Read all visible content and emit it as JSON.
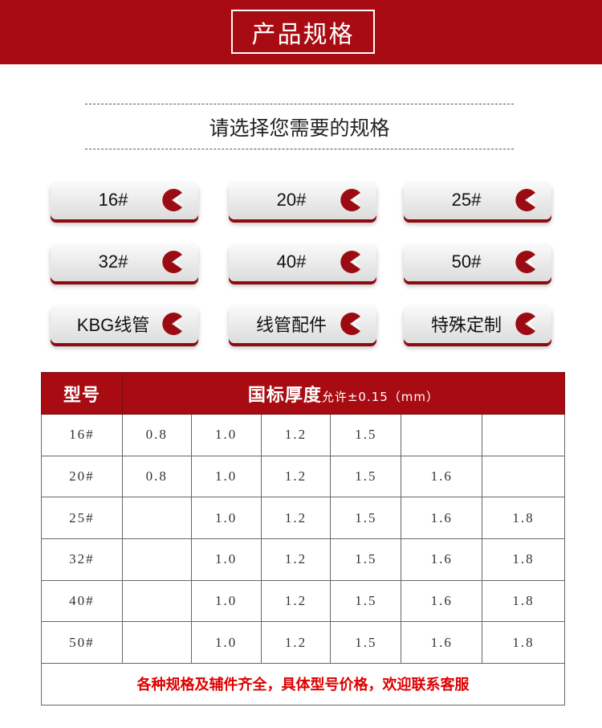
{
  "banner": {
    "title": "产品规格"
  },
  "subtitle": "请选择您需要的规格",
  "buttons": [
    {
      "label": "16#"
    },
    {
      "label": "20#"
    },
    {
      "label": "25#"
    },
    {
      "label": "32#"
    },
    {
      "label": "40#"
    },
    {
      "label": "50#"
    },
    {
      "label": "KBG线管"
    },
    {
      "label": "线管配件"
    },
    {
      "label": "特殊定制"
    }
  ],
  "button_icon": "pie-chevron-icon",
  "colors": {
    "brand_red": "#a80c12",
    "footer_text": "#dd0000"
  },
  "table": {
    "header_model": "型号",
    "header_thickness": "国标厚度",
    "header_tolerance": "允许±0.15（mm）",
    "rows": [
      {
        "model": "16#",
        "values": [
          "0.8",
          "1.0",
          "1.2",
          "1.5",
          "",
          ""
        ]
      },
      {
        "model": "20#",
        "values": [
          "0.8",
          "1.0",
          "1.2",
          "1.5",
          "1.6",
          ""
        ]
      },
      {
        "model": "25#",
        "values": [
          "",
          "1.0",
          "1.2",
          "1.5",
          "1.6",
          "1.8"
        ]
      },
      {
        "model": "32#",
        "values": [
          "",
          "1.0",
          "1.2",
          "1.5",
          "1.6",
          "1.8"
        ]
      },
      {
        "model": "40#",
        "values": [
          "",
          "1.0",
          "1.2",
          "1.5",
          "1.6",
          "1.8"
        ]
      },
      {
        "model": "50#",
        "values": [
          "",
          "1.0",
          "1.2",
          "1.5",
          "1.6",
          "1.8"
        ]
      }
    ],
    "footer": "各种规格及辅件齐全，具体型号价格，欢迎联系客服"
  }
}
